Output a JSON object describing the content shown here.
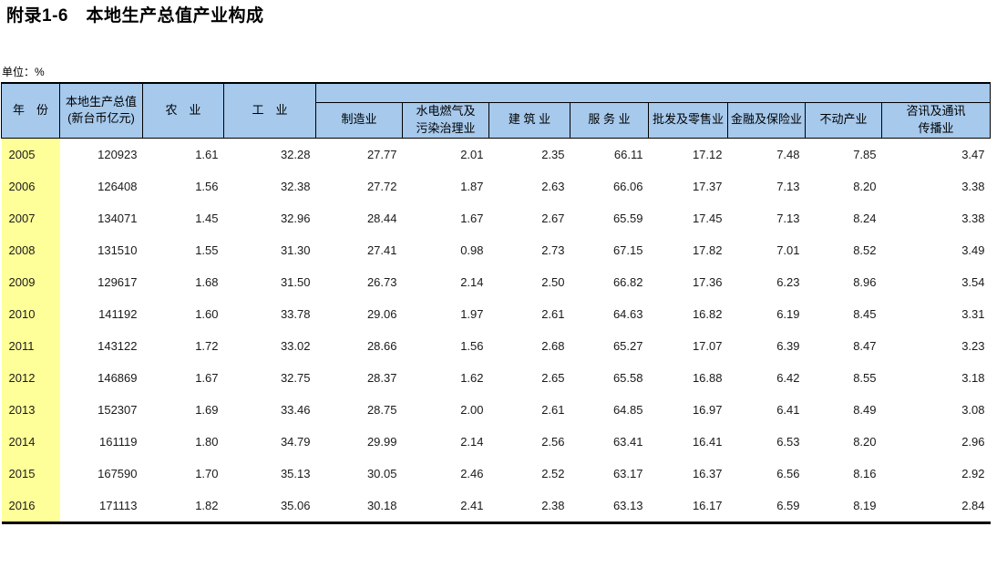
{
  "page": {
    "title": "附录1-6　本地生产总值产业构成",
    "unit_label": "单位：%"
  },
  "colors": {
    "header_bg": "#A6C9EC",
    "year_col_bg": "#FFFF99",
    "border": "#000000"
  },
  "table": {
    "header": {
      "year": "年　份",
      "gdp_line1": "本地生产总值",
      "gdp_line2": "(新台币亿元)",
      "agriculture": "农　业",
      "industry": "工　业",
      "manufacturing": "制造业",
      "utilities_line1": "水电燃气及",
      "utilities_line2": "污染治理业",
      "construction": "建 筑 业",
      "services": "服 务 业",
      "wholesale_retail": "批发及零售业",
      "finance_insurance": "金融及保险业",
      "real_estate": "不动产业",
      "info_comm_line1": "咨讯及通讯",
      "info_comm_line2": "传播业"
    },
    "rows": [
      {
        "year": "2005",
        "values": [
          "120923",
          "1.61",
          "32.28",
          "27.77",
          "2.01",
          "2.35",
          "66.11",
          "17.12",
          "7.48",
          "7.85",
          "3.47"
        ]
      },
      {
        "year": "2006",
        "values": [
          "126408",
          "1.56",
          "32.38",
          "27.72",
          "1.87",
          "2.63",
          "66.06",
          "17.37",
          "7.13",
          "8.20",
          "3.38"
        ]
      },
      {
        "year": "2007",
        "values": [
          "134071",
          "1.45",
          "32.96",
          "28.44",
          "1.67",
          "2.67",
          "65.59",
          "17.45",
          "7.13",
          "8.24",
          "3.38"
        ]
      },
      {
        "year": "2008",
        "values": [
          "131510",
          "1.55",
          "31.30",
          "27.41",
          "0.98",
          "2.73",
          "67.15",
          "17.82",
          "7.01",
          "8.52",
          "3.49"
        ]
      },
      {
        "year": "2009",
        "values": [
          "129617",
          "1.68",
          "31.50",
          "26.73",
          "2.14",
          "2.50",
          "66.82",
          "17.36",
          "6.23",
          "8.96",
          "3.54"
        ]
      },
      {
        "year": "2010",
        "values": [
          "141192",
          "1.60",
          "33.78",
          "29.06",
          "1.97",
          "2.61",
          "64.63",
          "16.82",
          "6.19",
          "8.45",
          "3.31"
        ]
      },
      {
        "year": "2011",
        "values": [
          "143122",
          "1.72",
          "33.02",
          "28.66",
          "1.56",
          "2.68",
          "65.27",
          "17.07",
          "6.39",
          "8.47",
          "3.23"
        ]
      },
      {
        "year": "2012",
        "values": [
          "146869",
          "1.67",
          "32.75",
          "28.37",
          "1.62",
          "2.65",
          "65.58",
          "16.88",
          "6.42",
          "8.55",
          "3.18"
        ]
      },
      {
        "year": "2013",
        "values": [
          "152307",
          "1.69",
          "33.46",
          "28.75",
          "2.00",
          "2.61",
          "64.85",
          "16.97",
          "6.41",
          "8.49",
          "3.08"
        ]
      },
      {
        "year": "2014",
        "values": [
          "161119",
          "1.80",
          "34.79",
          "29.99",
          "2.14",
          "2.56",
          "63.41",
          "16.41",
          "6.53",
          "8.20",
          "2.96"
        ]
      },
      {
        "year": "2015",
        "values": [
          "167590",
          "1.70",
          "35.13",
          "30.05",
          "2.46",
          "2.52",
          "63.17",
          "16.37",
          "6.56",
          "8.16",
          "2.92"
        ]
      },
      {
        "year": "2016",
        "values": [
          "171113",
          "1.82",
          "35.06",
          "30.18",
          "2.41",
          "2.38",
          "63.13",
          "16.17",
          "6.59",
          "8.19",
          "2.84"
        ]
      }
    ]
  }
}
